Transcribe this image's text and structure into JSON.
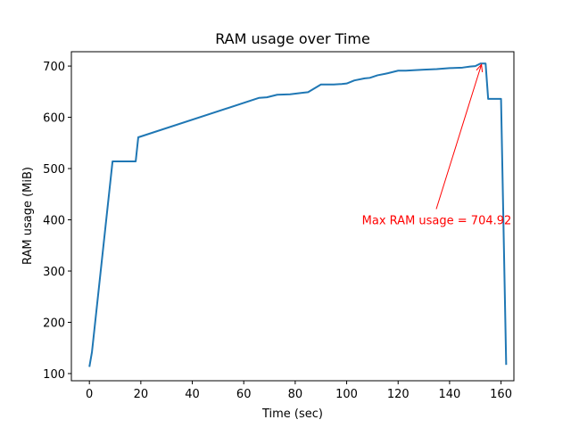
{
  "chart_data": {
    "type": "line",
    "title": "RAM usage over Time",
    "xlabel": "Time (sec)",
    "ylabel": "RAM usage (MiB)",
    "xlim": [
      -7,
      165
    ],
    "ylim": [
      86,
      728
    ],
    "xticks": [
      0,
      20,
      40,
      60,
      80,
      100,
      120,
      140,
      160
    ],
    "yticks": [
      100,
      200,
      300,
      400,
      500,
      600,
      700
    ],
    "grid": false,
    "series_color": "#1f77b4",
    "annotation_color": "#ff0000",
    "series": [
      {
        "x": [
          0,
          1,
          9,
          10,
          18,
          19,
          66,
          69,
          73,
          78,
          83,
          85,
          90,
          95,
          98,
          100,
          103,
          107,
          109,
          112,
          115,
          116,
          120,
          121,
          123,
          126,
          130,
          135,
          140,
          145,
          148,
          150,
          152,
          154,
          155,
          159,
          160,
          162
        ],
        "y": [
          113,
          142,
          514,
          514,
          514,
          561,
          638,
          639,
          644,
          645,
          648,
          649,
          664,
          664,
          665,
          666,
          672,
          676,
          677,
          682,
          685,
          686,
          691,
          691,
          691,
          692,
          693,
          694,
          696,
          697,
          699,
          700,
          705,
          704.92,
          636,
          636,
          636,
          117
        ]
      }
    ],
    "annotation": {
      "text": "Max RAM usage = 704.92",
      "xy": [
        152.5,
        704.92
      ],
      "xytext": [
        135,
        400
      ]
    }
  }
}
